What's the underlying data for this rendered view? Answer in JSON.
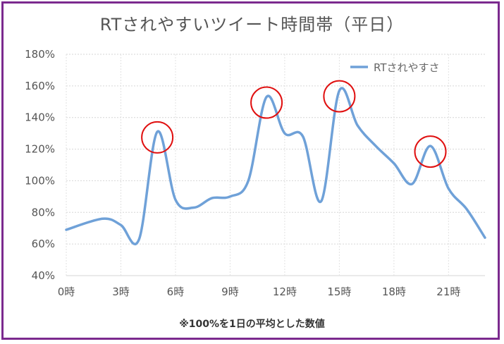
{
  "title": "RTされやすいツイート時間帯（平日）",
  "footnote": "※100%を1日の平均とした数値",
  "chart_data": {
    "type": "line",
    "title": "RTされやすいツイート時間帯（平日）",
    "xlabel": "",
    "ylabel": "",
    "x": [
      0,
      2,
      3,
      4,
      5,
      6,
      7,
      8,
      9,
      10,
      11,
      12,
      13,
      14,
      15,
      16,
      17,
      18,
      19,
      20,
      21,
      22,
      23
    ],
    "x_ticks": [
      "0時",
      "3時",
      "6時",
      "9時",
      "12時",
      "15時",
      "18時",
      "21時"
    ],
    "x_tick_values": [
      0,
      3,
      6,
      9,
      12,
      15,
      18,
      21
    ],
    "xlim": [
      0,
      23
    ],
    "y_ticks": [
      "40%",
      "60%",
      "80%",
      "100%",
      "120%",
      "140%",
      "160%",
      "180%"
    ],
    "y_tick_values": [
      40,
      60,
      80,
      100,
      120,
      140,
      160,
      180
    ],
    "ylim": [
      40,
      180
    ],
    "grid": true,
    "legend_position": "top-right",
    "series": [
      {
        "name": "RTされやすさ",
        "color": "#6fa1d8",
        "values": [
          69,
          76,
          72,
          63,
          131,
          88,
          83,
          89,
          90,
          100,
          153,
          130,
          128,
          87,
          157,
          135,
          122,
          111,
          98,
          122,
          95,
          82,
          64
        ]
      }
    ],
    "annotations": [
      {
        "type": "circle",
        "x": 5,
        "y": 131,
        "color": "#e01010"
      },
      {
        "type": "circle",
        "x": 11,
        "y": 153,
        "color": "#e01010"
      },
      {
        "type": "circle",
        "x": 15,
        "y": 157,
        "color": "#e01010"
      },
      {
        "type": "circle",
        "x": 20,
        "y": 122,
        "color": "#e01010"
      }
    ]
  }
}
